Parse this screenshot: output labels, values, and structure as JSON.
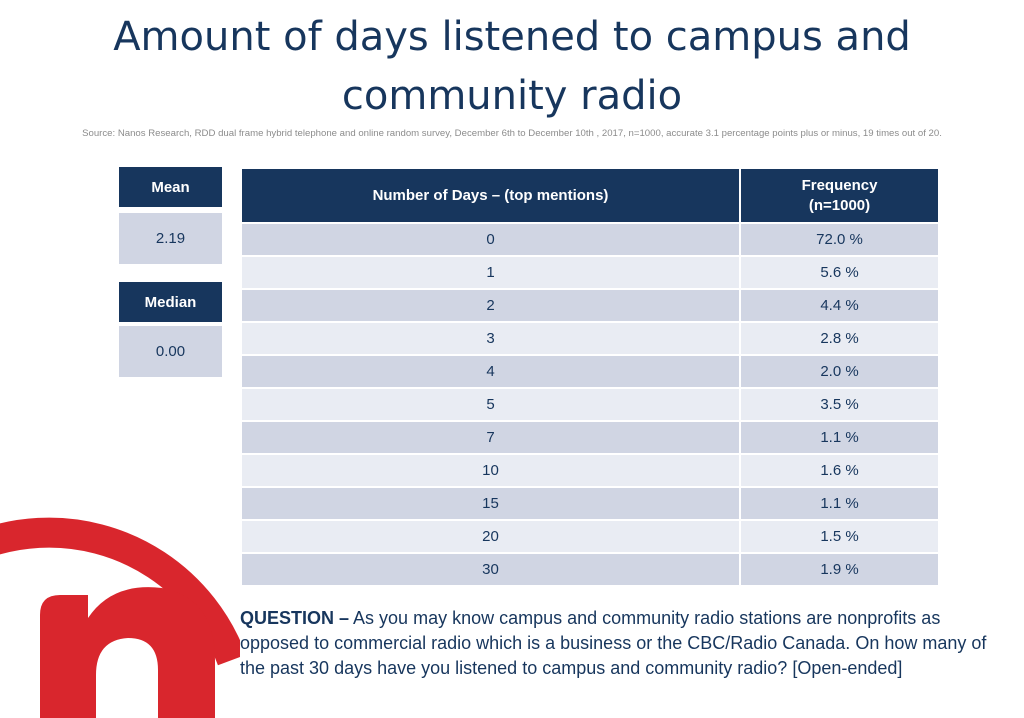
{
  "title": "Amount of days listened to campus and community radio",
  "source": "Source: Nanos Research, RDD dual frame hybrid  telephone and online random survey, December 6th to December 10th ,  2017, n=1000, accurate 3.1 percentage points plus or minus, 19 times out of 20.",
  "stats": {
    "mean_label": "Mean",
    "mean_value": "2.19",
    "median_label": "Median",
    "median_value": "0.00"
  },
  "table": {
    "col1_header": "Number of Days – (top mentions)",
    "col2_header_line1": "Frequency",
    "col2_header_line2": "(n=1000)"
  },
  "chart_data": {
    "type": "table",
    "columns": [
      "Number of Days – (top mentions)",
      "Frequency (n=1000)"
    ],
    "rows": [
      {
        "days": "0",
        "frequency": "72.0 %"
      },
      {
        "days": "1",
        "frequency": "5.6 %"
      },
      {
        "days": "2",
        "frequency": "4.4 %"
      },
      {
        "days": "3",
        "frequency": "2.8 %"
      },
      {
        "days": "4",
        "frequency": "2.0 %"
      },
      {
        "days": "5",
        "frequency": "3.5 %"
      },
      {
        "days": "7",
        "frequency": "1.1 %"
      },
      {
        "days": "10",
        "frequency": "1.6 %"
      },
      {
        "days": "15",
        "frequency": "1.1 %"
      },
      {
        "days": "20",
        "frequency": "1.5 %"
      },
      {
        "days": "30",
        "frequency": "1.9 %"
      }
    ],
    "title": "Amount of days listened to campus and community radio"
  },
  "question": {
    "label": "QUESTION –",
    "text": " As you may know campus and community radio stations are nonprofits as opposed to commercial radio which is a business or the CBC/Radio Canada. On how many of the past 30 days have you listened to campus and community radio? [Open-ended]"
  },
  "colors": {
    "navy": "#17365d",
    "row_dark": "#d0d5e3",
    "row_light": "#e9ecf3",
    "logo_red": "#d9262d"
  },
  "logo": {
    "icon": "nanos-logo-icon"
  }
}
